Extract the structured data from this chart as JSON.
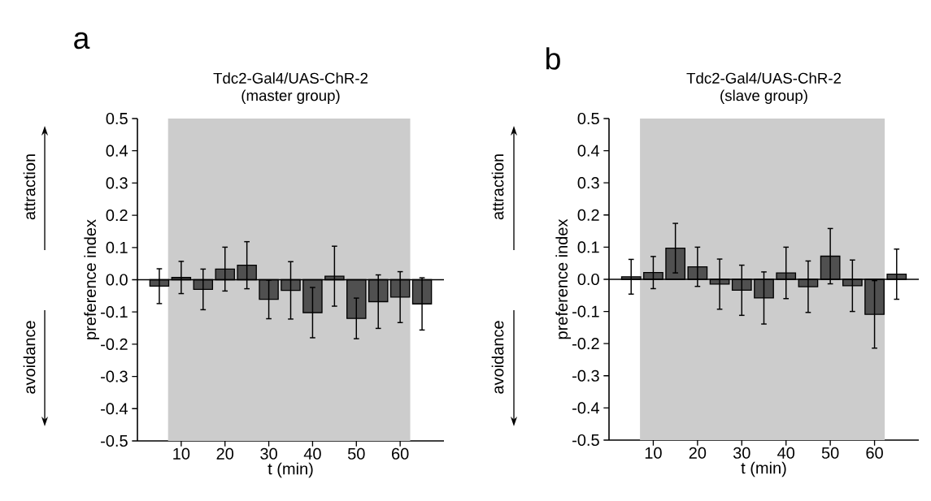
{
  "chart_data": [
    {
      "type": "bar",
      "title": "Tdc2-Gal4/UAS-ChR-2",
      "subtitle": "(master group)",
      "xlabel": "t (min)",
      "ylabel": "preference index",
      "annotations": [
        "a",
        "attraction",
        "avoidance"
      ],
      "x": [
        5,
        10,
        15,
        20,
        25,
        30,
        35,
        40,
        45,
        50,
        55,
        60,
        65
      ],
      "values": [
        -0.02,
        0.007,
        -0.03,
        0.033,
        0.045,
        -0.061,
        -0.033,
        -0.102,
        0.011,
        -0.12,
        -0.068,
        -0.054,
        -0.075
      ],
      "errors": [
        0.054,
        0.05,
        0.063,
        0.068,
        0.073,
        0.06,
        0.089,
        0.078,
        0.093,
        0.063,
        0.083,
        0.079,
        0.081
      ],
      "color": "#505050",
      "xlim": [
        0,
        70
      ],
      "xticks": [
        10,
        20,
        30,
        40,
        50,
        60
      ],
      "ylim": [
        -0.5,
        0.5
      ],
      "yticks": [
        -0.5,
        -0.4,
        -0.3,
        -0.2,
        -0.1,
        {
          "value": 0,
          "label": "0.0"
        },
        0.1,
        0.2,
        0.3,
        0.4,
        0.5
      ],
      "bands": [
        {
          "axis": "x",
          "from": 7,
          "to": 62.3,
          "color": "#cccccc"
        }
      ],
      "ref_lines": [
        {
          "axis": "y",
          "value": 0
        }
      ]
    },
    {
      "type": "bar",
      "title": "Tdc2-Gal4/UAS-ChR-2",
      "subtitle": "(slave group)",
      "xlabel": "t (min)",
      "ylabel": "preference index",
      "annotations": [
        "b",
        "attraction",
        "avoidance"
      ],
      "x": [
        5,
        10,
        15,
        20,
        25,
        30,
        35,
        40,
        45,
        50,
        55,
        60,
        65
      ],
      "values": [
        0.008,
        0.021,
        0.097,
        0.039,
        -0.015,
        -0.034,
        -0.058,
        0.02,
        -0.023,
        0.072,
        -0.02,
        -0.109,
        0.016
      ],
      "errors": [
        0.054,
        0.05,
        0.077,
        0.061,
        0.078,
        0.078,
        0.081,
        0.08,
        0.08,
        0.086,
        0.08,
        0.105,
        0.078
      ],
      "color": "#505050",
      "xlim": [
        0,
        70
      ],
      "xticks": [
        10,
        20,
        30,
        40,
        50,
        60
      ],
      "ylim": [
        -0.5,
        0.5
      ],
      "yticks": [
        -0.5,
        -0.4,
        -0.3,
        -0.2,
        -0.1,
        {
          "value": 0,
          "label": "0.0"
        },
        0.1,
        0.2,
        0.3,
        0.4,
        0.5
      ],
      "bands": [
        {
          "axis": "x",
          "from": 7,
          "to": 62.3,
          "color": "#cccccc"
        }
      ],
      "ref_lines": [
        {
          "axis": "y",
          "value": 0
        }
      ]
    }
  ]
}
